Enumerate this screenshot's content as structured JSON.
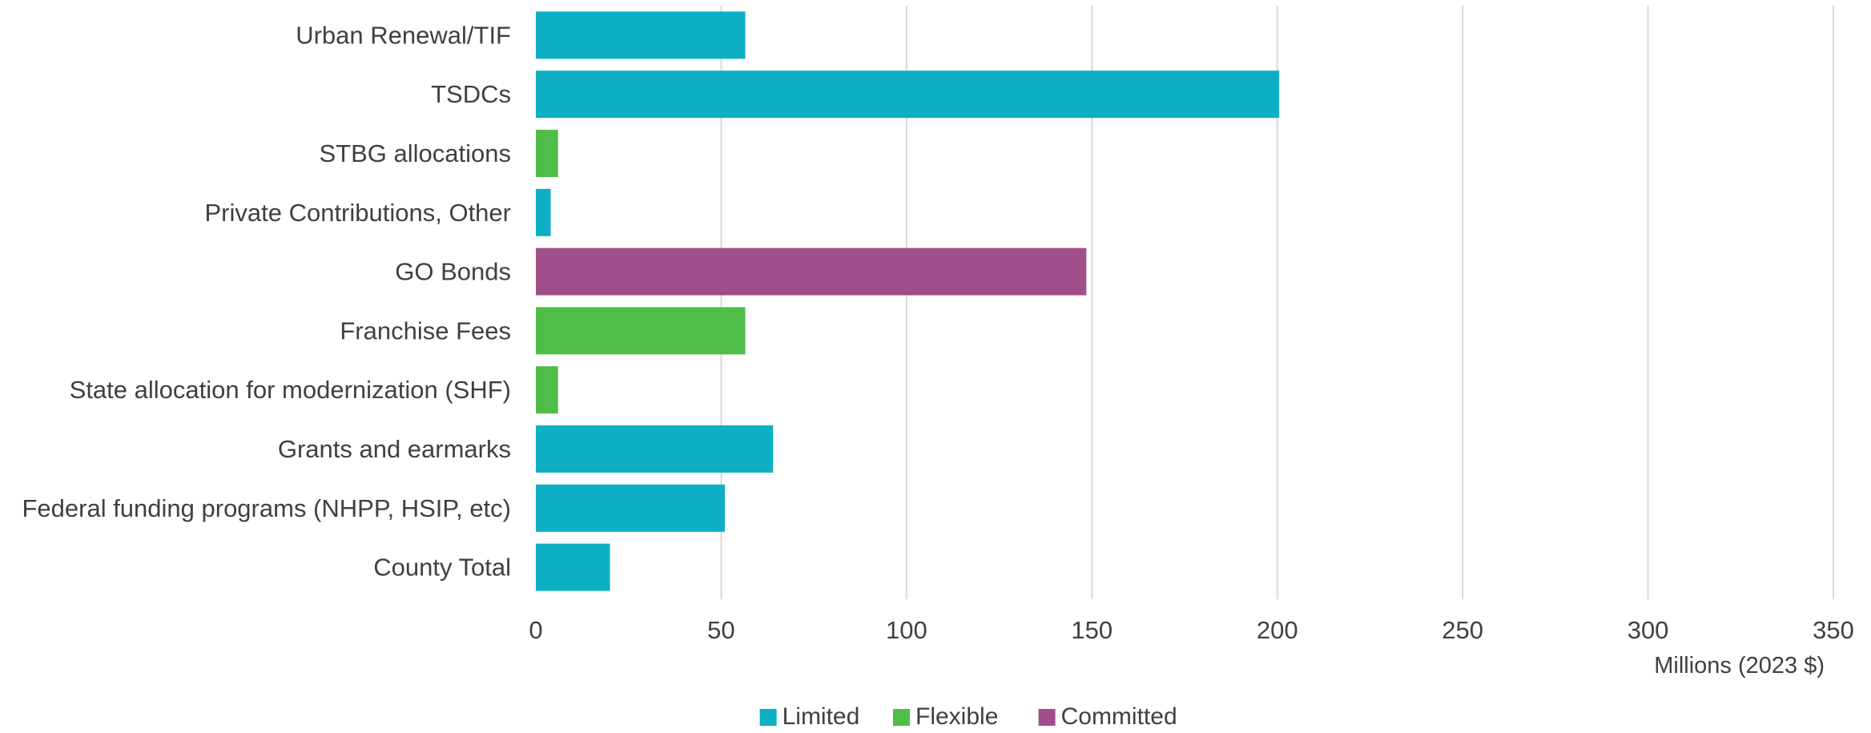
{
  "chart_data": {
    "type": "bar",
    "orientation": "horizontal",
    "title": "",
    "xlabel": "Millions (2023 $)",
    "ylabel": "",
    "xlim": [
      0,
      350
    ],
    "xticks": [
      0,
      50,
      100,
      150,
      200,
      250,
      300,
      350
    ],
    "grid": "vertical",
    "legend_position": "bottom",
    "categories": [
      "Urban Renewal/TIF",
      "TSDCs",
      "STBG allocations",
      "Private Contributions, Other",
      "GO Bonds",
      "Franchise Fees",
      "State allocation for modernization (SHF)",
      "Grants and earmarks",
      "Federal funding programs (NHPP, HSIP, etc)",
      "County Total"
    ],
    "values": [
      56.5,
      200.5,
      6,
      4,
      148.5,
      56.5,
      6,
      64,
      51,
      20
    ],
    "bar_groups": [
      "Limited",
      "Limited",
      "Flexible",
      "Limited",
      "Committed",
      "Flexible",
      "Flexible",
      "Limited",
      "Limited",
      "Limited"
    ],
    "legend": [
      {
        "name": "Limited",
        "color": "#0eafc3"
      },
      {
        "name": "Flexible",
        "color": "#4fbd47"
      },
      {
        "name": "Committed",
        "color": "#a04f8b"
      }
    ]
  }
}
